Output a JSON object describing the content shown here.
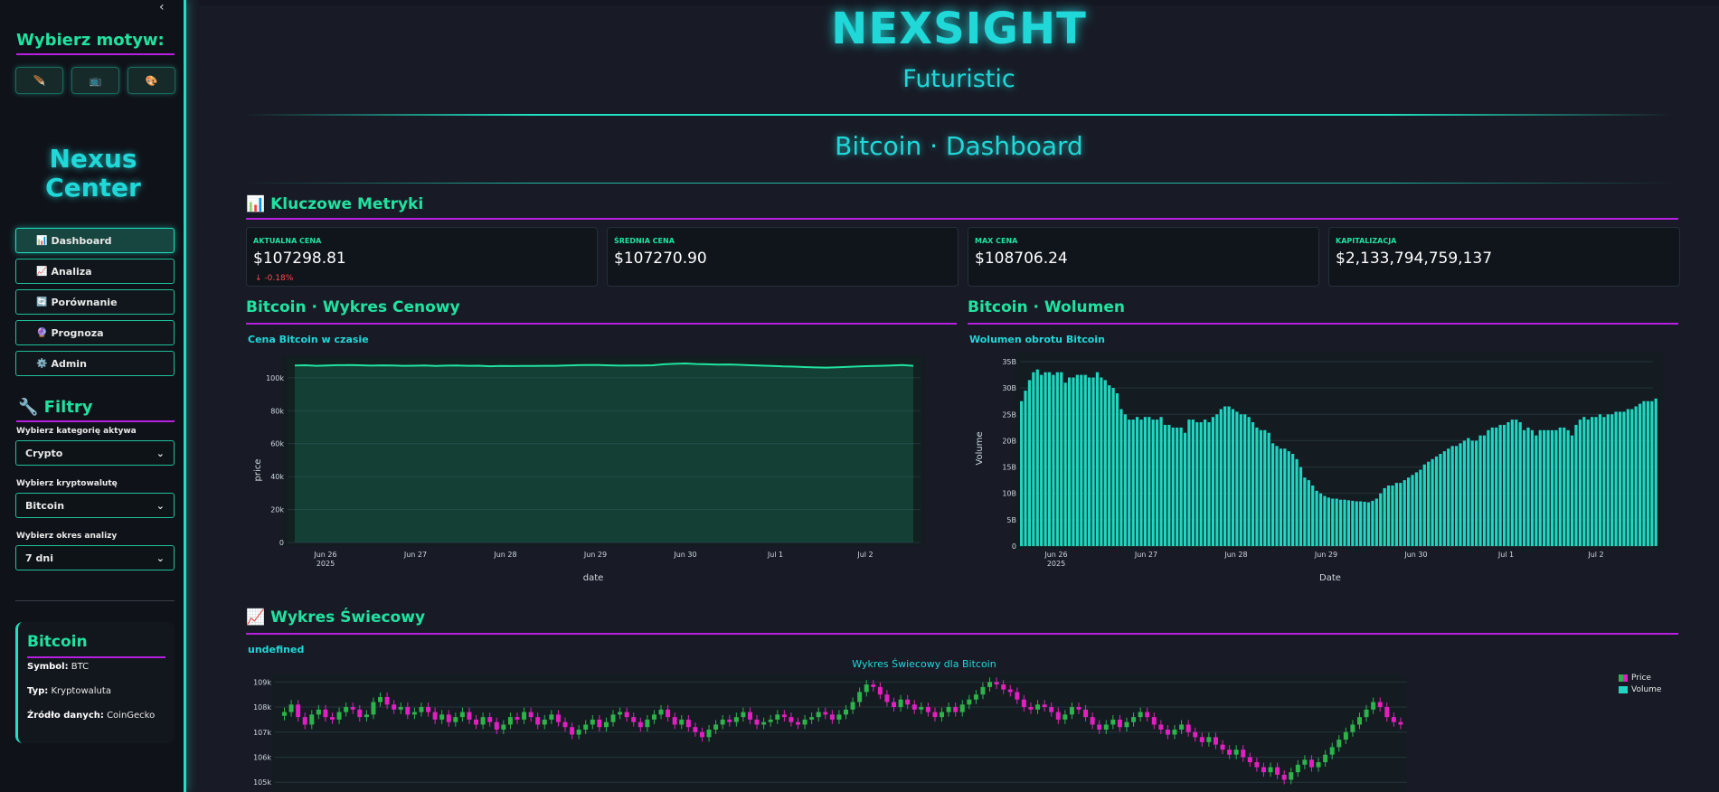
{
  "sidebar": {
    "collapse_glyph": "‹",
    "theme_title": "Wybierz motyw:",
    "theme_buttons": [
      {
        "icon": "feather-icon",
        "glyph": "🪶"
      },
      {
        "icon": "tv-icon",
        "glyph": "📺"
      },
      {
        "icon": "palette-icon",
        "glyph": "🎨"
      }
    ],
    "nexus_line1": "Nexus",
    "nexus_line2": "Center",
    "nav": [
      {
        "icon": "📊",
        "label": "Dashboard",
        "active": true
      },
      {
        "icon": "📈",
        "label": "Analiza"
      },
      {
        "icon": "🔄",
        "label": "Porównanie"
      },
      {
        "icon": "🔮",
        "label": "Prognoza"
      },
      {
        "icon": "⚙️",
        "label": "Admin"
      }
    ],
    "filters_title": "🔧 Filtry",
    "filters": [
      {
        "label": "Wybierz kategorię aktywa",
        "value": "Crypto"
      },
      {
        "label": "Wybierz kryptowalutę",
        "value": "Bitcoin"
      },
      {
        "label": "Wybierz okres analizy",
        "value": "7 dni"
      }
    ],
    "asset": {
      "name": "Bitcoin",
      "symbol_label": "Symbol:",
      "symbol": "BTC",
      "type_label": "Typ:",
      "type": "Kryptowaluta",
      "source_label": "Źródło danych:",
      "source": "CoinGecko"
    }
  },
  "header": {
    "brand": "NEXSIGHT",
    "subtitle": "Futuristic",
    "dashboard_title": "Bitcoin · Dashboard"
  },
  "metrics": {
    "section_title": "📊 Kluczowe Metryki",
    "cards": [
      {
        "label": "AKTUALNA CENA",
        "value": "$107298.81",
        "delta": "↓ -0.18%"
      },
      {
        "label": "ŚREDNIA CENA",
        "value": "$107270.90"
      },
      {
        "label": "MAX CENA",
        "value": "$108706.24"
      },
      {
        "label": "KAPITALIZACJA",
        "value": "$2,133,794,759,137"
      }
    ]
  },
  "price_section": {
    "title": "Bitcoin · Wykres Cenowy",
    "subtitle": "Cena Bitcoin w czasie"
  },
  "volume_section": {
    "title": "Bitcoin · Wolumen",
    "subtitle": "Wolumen obrotu Bitcoin"
  },
  "candle_section": {
    "title": "📈 Wykres Świecowy",
    "subtitle": "undefined",
    "chart_title": "Wykres Świecowy dla Bitcoin"
  },
  "colors": {
    "accent": "#20e3a0",
    "cyan": "#20d8d8",
    "purple": "#b520e0",
    "up": "#2db34a",
    "down": "#e020c0",
    "bar": "#1fd6c0"
  },
  "chart_data": [
    {
      "type": "area",
      "title": "Cena Bitcoin w czasie",
      "xlabel": "date",
      "ylabel": "price",
      "x_ticks": [
        "Jun 26",
        "Jun 27",
        "Jun 28",
        "Jun 29",
        "Jun 30",
        "Jul 1",
        "Jul 2"
      ],
      "x_year": "2025",
      "y_ticks": [
        "0",
        "20k",
        "40k",
        "60k",
        "80k",
        "100k"
      ],
      "ylim": [
        0,
        112000
      ],
      "values": [
        107500,
        107600,
        107300,
        107450,
        107650,
        107700,
        107600,
        107400,
        107550,
        107500,
        107300,
        107350,
        107500,
        107200,
        107400,
        107450,
        107300,
        107350,
        107000,
        107200,
        107100,
        107250,
        107150,
        107300,
        107300,
        107500,
        107650,
        107800,
        107700,
        107550,
        107400,
        107450,
        107500,
        107600,
        108200,
        108500,
        108700,
        108400,
        108200,
        108000,
        108100,
        107900,
        107600,
        107400,
        107200,
        106900,
        106800,
        106500,
        106300,
        106200,
        106400,
        106600,
        106900,
        107100,
        107300,
        107500,
        107700,
        107298
      ]
    },
    {
      "type": "bar",
      "title": "Wolumen obrotu Bitcoin",
      "xlabel": "Date",
      "ylabel": "Volume",
      "x_ticks": [
        "Jun 26",
        "Jun 27",
        "Jun 28",
        "Jun 29",
        "Jun 30",
        "Jul 1",
        "Jul 2"
      ],
      "x_year": "2025",
      "y_ticks": [
        "0",
        "5B",
        "10B",
        "15B",
        "20B",
        "25B",
        "30B",
        "35B"
      ],
      "ylim": [
        0,
        35
      ],
      "values": [
        27.5,
        29.5,
        31.5,
        33,
        33.5,
        32.5,
        33,
        33,
        32.5,
        33,
        33,
        31,
        32,
        32,
        32.5,
        32.5,
        32.5,
        32,
        32,
        33,
        32,
        31.5,
        30.5,
        30,
        29,
        26,
        25,
        24,
        24,
        24.5,
        24,
        24.5,
        24.5,
        24,
        24,
        24.5,
        23,
        23,
        22.5,
        22.5,
        22.5,
        21.5,
        24,
        24,
        23.5,
        23.5,
        24,
        23.5,
        24.5,
        25,
        26,
        26.5,
        26.5,
        26,
        25.5,
        25,
        25,
        24.5,
        23.5,
        22.5,
        22,
        22,
        21.5,
        19.5,
        19,
        18.5,
        18.5,
        18,
        17.5,
        16.5,
        15,
        13,
        12.5,
        11.5,
        10.5,
        10,
        9.5,
        9.2,
        9,
        9,
        8.8,
        8.8,
        8.7,
        8.6,
        8.5,
        8.5,
        8.4,
        8.3,
        8.6,
        9,
        10,
        11,
        11.5,
        11.5,
        12,
        12,
        12.5,
        13,
        13.5,
        14,
        14.5,
        15.5,
        16,
        16.5,
        17,
        17.5,
        18,
        18.5,
        19,
        19,
        19.5,
        20,
        20.5,
        20,
        20,
        21,
        21,
        22,
        22.5,
        22.5,
        23,
        23,
        23.5,
        24,
        24,
        23.5,
        22,
        22.5,
        22,
        21,
        22,
        22,
        22,
        22,
        22,
        22.5,
        22.5,
        22,
        21,
        23,
        24,
        24.5,
        24,
        24.5,
        24.5,
        25,
        24.5,
        25,
        25,
        25.5,
        25.5,
        25.5,
        26,
        26,
        26.5,
        27,
        27.5,
        27.5,
        27.5,
        28
      ]
    },
    {
      "type": "candlestick",
      "title": "Wykres Świecowy dla Bitcoin",
      "y_ticks": [
        "105k",
        "106k",
        "107k",
        "108k",
        "109k"
      ],
      "ylim": [
        104900,
        109300
      ],
      "legend": [
        "Price",
        "Volume"
      ],
      "closes": [
        107800,
        108100,
        107600,
        107300,
        107700,
        107900,
        107600,
        107500,
        107800,
        108000,
        107900,
        107600,
        107700,
        108200,
        108400,
        108100,
        107900,
        108000,
        107700,
        107800,
        108000,
        107800,
        107500,
        107700,
        107400,
        107600,
        107800,
        107500,
        107300,
        107600,
        107400,
        107100,
        107300,
        107600,
        107500,
        107800,
        107600,
        107300,
        107500,
        107700,
        107400,
        107200,
        106900,
        107100,
        107300,
        107500,
        107200,
        107400,
        107700,
        107800,
        107600,
        107400,
        107200,
        107500,
        107700,
        107900,
        107600,
        107300,
        107500,
        107200,
        107000,
        106800,
        107100,
        107300,
        107500,
        107400,
        107600,
        107800,
        107500,
        107300,
        107400,
        107500,
        107700,
        107600,
        107400,
        107300,
        107500,
        107600,
        107800,
        107700,
        107500,
        107700,
        107900,
        108200,
        108600,
        108900,
        108800,
        108500,
        108200,
        108000,
        108300,
        108100,
        107900,
        108000,
        107800,
        107600,
        107800,
        108000,
        107800,
        108100,
        108300,
        108500,
        108800,
        109000,
        108900,
        108700,
        108600,
        108300,
        108000,
        107900,
        108100,
        108000,
        107800,
        107500,
        107700,
        108000,
        107900,
        107600,
        107300,
        107100,
        107300,
        107500,
        107200,
        107400,
        107600,
        107800,
        107600,
        107300,
        107100,
        106900,
        107100,
        107300,
        107000,
        106800,
        106600,
        106800,
        106500,
        106300,
        106100,
        106300,
        106000,
        105800,
        105600,
        105400,
        105600,
        105300,
        105100,
        105400,
        105700,
        105900,
        105600,
        105800,
        106100,
        106400,
        106700,
        107000,
        107300,
        107600,
        107900,
        108200,
        108000,
        107600,
        107400,
        107300
      ]
    }
  ]
}
